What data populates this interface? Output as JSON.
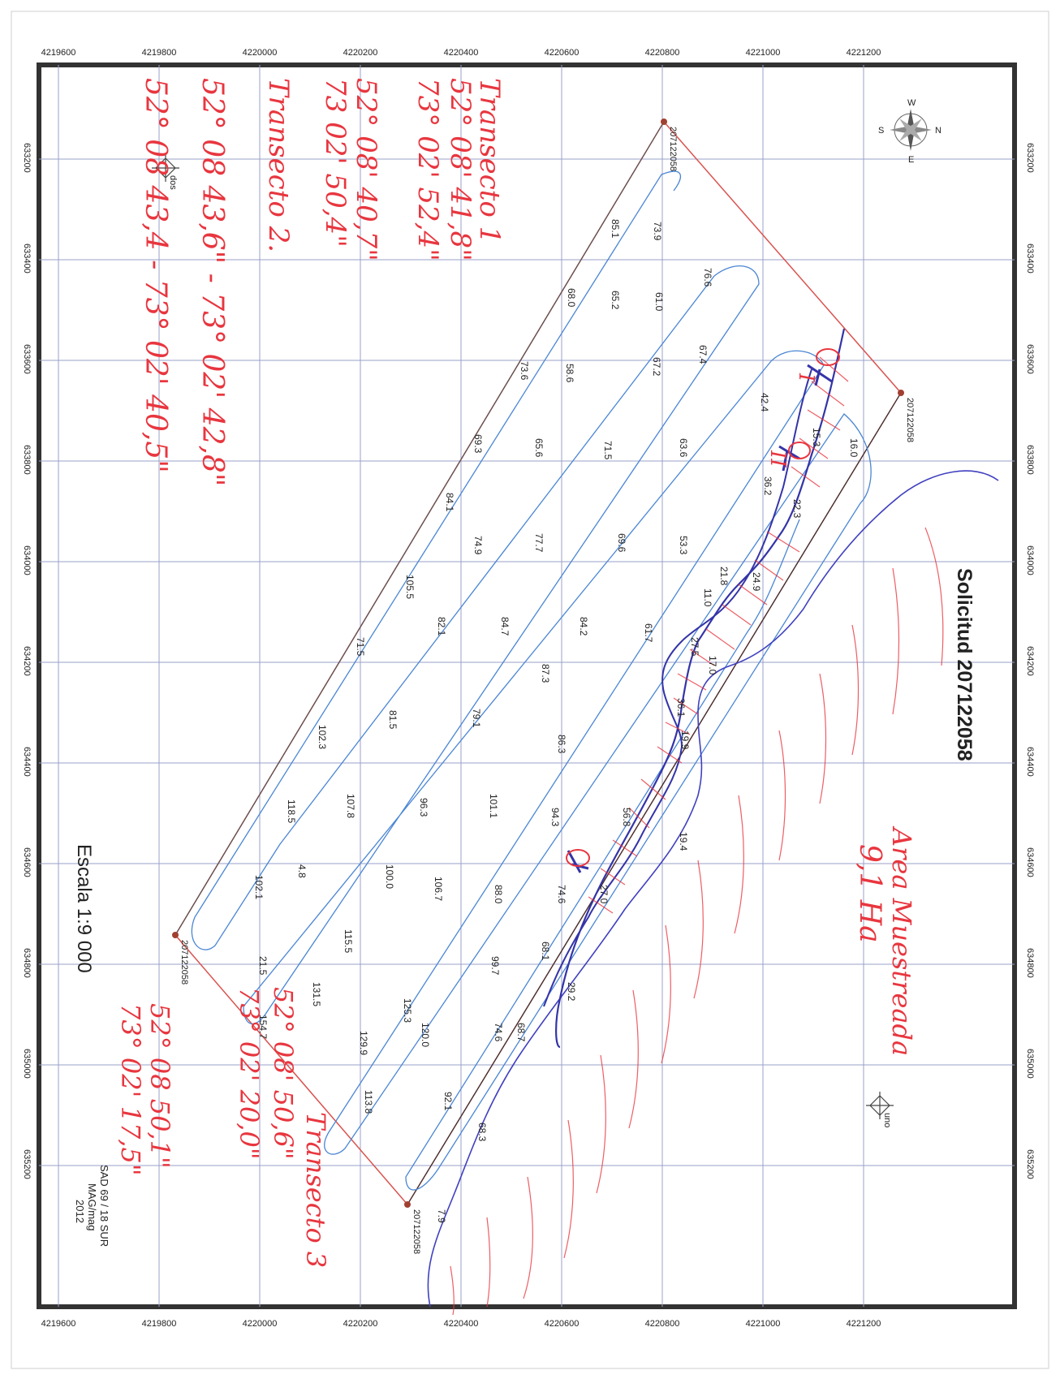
{
  "map": {
    "title": "Solicitud 207122058",
    "scale_text": "Escala 1:9 000",
    "datum_text": "SAD 69 / 18 SUR",
    "author_text": "MAG/mag",
    "year_text": "2012",
    "northing_ticks": [
      "4219600",
      "4219800",
      "4220000",
      "4220200",
      "4220400",
      "4220600",
      "4220800",
      "4221000",
      "4221200"
    ],
    "easting_ticks": [
      "633200",
      "633400",
      "633600",
      "633800",
      "634000",
      "634200",
      "634400",
      "634600",
      "634800",
      "635000",
      "635200"
    ],
    "corner_label": "207122058",
    "point_labels": {
      "dos": "dos",
      "uno": "uno"
    },
    "compass": {
      "n": "N",
      "s": "S",
      "e": "E",
      "w": "W"
    },
    "depth_labels": [
      "85.1",
      "73.9",
      "76.6",
      "68.0",
      "65.2",
      "61.0",
      "73.6",
      "58.6",
      "67.2",
      "67.4",
      "69.3",
      "65.6",
      "71.5",
      "63.6",
      "42.4",
      "15.3",
      "16.0",
      "84.1",
      "74.9",
      "77.7",
      "69.6",
      "53.3",
      "36.2",
      "22.3",
      "105.5",
      "82.1",
      "84.7",
      "84.2",
      "61.7",
      "21.8",
      "24.9",
      "71.5",
      "81.5",
      "79.1",
      "87.3",
      "36.1",
      "27.5",
      "17.0",
      "11.0",
      "102.3",
      "107.8",
      "96.3",
      "86.3",
      "19.9",
      "118.5",
      "100.0",
      "101.1",
      "94.3",
      "56.8",
      "19.4",
      "102.1",
      "4.8",
      "115.5",
      "106.7",
      "88.0",
      "74.6",
      "27.0",
      "21.5",
      "131.5",
      "125.3",
      "99.7",
      "68.1",
      "29.2",
      "154.7",
      "129.9",
      "120.0",
      "74.6",
      "68.7",
      "113.8",
      "92.1",
      "68.3",
      "7.9"
    ],
    "handwritten": {
      "transect1_title": "Transecto 1",
      "transect1_a_lat": "52° 08' 41,8\"",
      "transect1_a_lon": "73° 02' 52,4\"",
      "transect1_b_lat": "52° 08' 40,7\"",
      "transect1_b_lon": "73 02' 50,4\"",
      "transect2_title": "Transecto 2.",
      "transect2_a": "52° 08 43,6\" - 73° 02' 42,8\"",
      "transect2_b": "52° 08 43,4 - 73° 02' 40,5\"",
      "area_title": "Area Muestreada",
      "area_value": "9,1 Ha",
      "transect3_title": "Transecto 3",
      "transect3_a_lat": "52° 08' 50,6\"",
      "transect3_a_lon": "73° 02' 20,0\"",
      "transect3_b_lat": "52° 08 50,1\"",
      "transect3_b_lon": "73° 02' 17,5\"",
      "mark_I": "I",
      "mark_II": "II"
    },
    "colors": {
      "grid": "#9aa0c8",
      "frame": "#333333",
      "polygon": "#d9534f",
      "track": "#4a86d4",
      "coast": "#4040c0",
      "handwriting": "#e8363f"
    }
  }
}
